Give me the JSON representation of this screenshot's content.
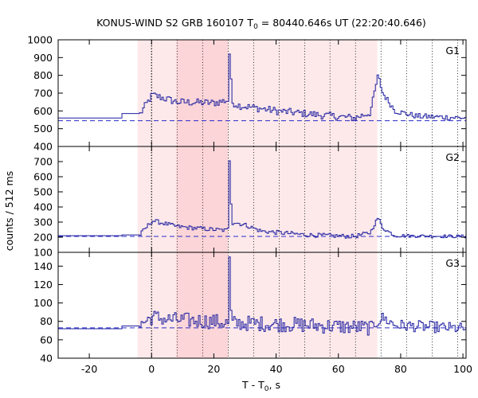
{
  "chart_data": {
    "type": "line",
    "title_main": "KONUS-WIND S2 GRB 160107 T",
    "title_sub": "0",
    "title_rest": " = 80440.646s UT (22:20:40.646)",
    "xlabel_main": "T - T",
    "xlabel_sub": "0",
    "xlabel_rest": ", s",
    "ylabel": "counts / 512 ms",
    "xlim": [
      -30,
      101
    ],
    "x_ticks": [
      -20,
      0,
      20,
      40,
      60,
      80,
      100
    ],
    "x_tick_labels": [
      "-20",
      "0",
      "20",
      "40",
      "60",
      "80",
      "100"
    ],
    "shaded_regions": [
      {
        "from": -4.5,
        "to": 72.5,
        "color": "#fde9ea"
      },
      {
        "from": 8.0,
        "to": 24.5,
        "color": "#fbd5d8"
      }
    ],
    "vertical_lines": [
      0,
      8.2,
      16.4,
      24.6,
      32.8,
      41.0,
      49.2,
      57.3,
      65.5,
      73.7,
      81.9,
      90.1,
      98.3
    ],
    "panels": [
      {
        "name": "G1",
        "label": "G1",
        "ylim": [
          400,
          1000
        ],
        "y_ticks": [
          400,
          500,
          600,
          700,
          800,
          900,
          1000
        ],
        "y_tick_labels": [
          "400",
          "500",
          "600",
          "700",
          "800",
          "900",
          "1000"
        ],
        "background": 545,
        "pre_level": 560,
        "pre_step_at": -10,
        "pre_step_level": 585,
        "noise": 18,
        "envelope": [
          [
            -4,
            580
          ],
          [
            0,
            690
          ],
          [
            2,
            680
          ],
          [
            8,
            650
          ],
          [
            20,
            645
          ],
          [
            24,
            660
          ],
          [
            28,
            630
          ],
          [
            40,
            600
          ],
          [
            55,
            575
          ],
          [
            65,
            560
          ],
          [
            70,
            590
          ],
          [
            72.5,
            800
          ],
          [
            74,
            700
          ],
          [
            78,
            600
          ],
          [
            85,
            570
          ],
          [
            101,
            560
          ]
        ],
        "spikes": [
          [
            25,
            920
          ],
          [
            25.5,
            780
          ]
        ]
      },
      {
        "name": "G2",
        "label": "G2",
        "ylim": [
          100,
          800
        ],
        "y_ticks": [
          100,
          200,
          300,
          400,
          500,
          600,
          700
        ],
        "y_tick_labels": [
          "100",
          "200",
          "300",
          "400",
          "500",
          "600",
          "700"
        ],
        "background": 205,
        "pre_level": 210,
        "pre_step_at": -10,
        "pre_step_level": 215,
        "noise": 12,
        "envelope": [
          [
            -4,
            215
          ],
          [
            0,
            310
          ],
          [
            2,
            300
          ],
          [
            8,
            270
          ],
          [
            20,
            250
          ],
          [
            24,
            245
          ],
          [
            26,
            300
          ],
          [
            30,
            280
          ],
          [
            35,
            240
          ],
          [
            50,
            215
          ],
          [
            65,
            205
          ],
          [
            70,
            230
          ],
          [
            72.5,
            330
          ],
          [
            74,
            260
          ],
          [
            78,
            210
          ],
          [
            101,
            205
          ]
        ],
        "spikes": [
          [
            25,
            705
          ],
          [
            25.5,
            420
          ]
        ]
      },
      {
        "name": "G3",
        "label": "G3",
        "ylim": [
          40,
          155
        ],
        "y_ticks": [
          40,
          60,
          80,
          100,
          120,
          140
        ],
        "y_tick_labels": [
          "40",
          "60",
          "80",
          "100",
          "120",
          "140"
        ],
        "background": 73,
        "pre_level": 72,
        "pre_step_at": -10,
        "pre_step_level": 75,
        "noise": 7,
        "envelope": [
          [
            -4,
            76
          ],
          [
            0,
            85
          ],
          [
            5,
            82
          ],
          [
            20,
            80
          ],
          [
            24,
            78
          ],
          [
            30,
            78
          ],
          [
            50,
            76
          ],
          [
            70,
            73
          ],
          [
            72.5,
            80
          ],
          [
            74,
            84
          ],
          [
            78,
            76
          ],
          [
            101,
            72
          ]
        ],
        "spikes": [
          [
            25,
            150
          ],
          [
            25.5,
            92
          ]
        ]
      }
    ],
    "line_color": "#1f1fa0",
    "background_line_color": "#2a2acc"
  }
}
